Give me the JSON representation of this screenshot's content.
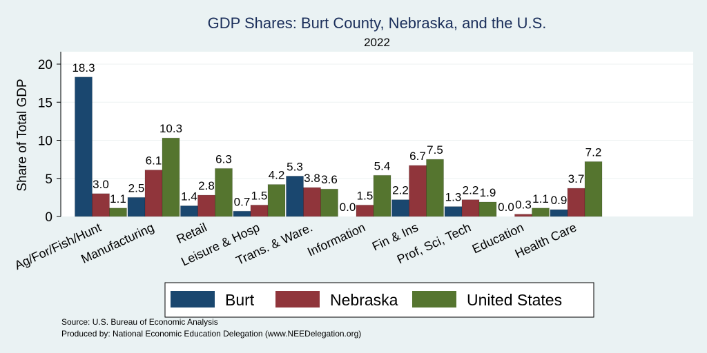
{
  "chart_data": {
    "type": "bar",
    "title": "GDP Shares: Burt County, Nebraska, and the U.S.",
    "subtitle": "2022",
    "ylabel": "Share of Total GDP",
    "xlabel": "",
    "ylim": [
      0,
      21.8
    ],
    "yticks": [
      0,
      5,
      10,
      15,
      20
    ],
    "grid": true,
    "legend_position": "bottom",
    "categories": [
      "Ag/For/Fish/Hunt",
      "Manufacturing",
      "Retail",
      "Leisure & Hosp",
      "Trans. & Ware.",
      "Information",
      "Fin & Ins",
      "Prof, Sci, Tech",
      "Education",
      "Health Care"
    ],
    "series": [
      {
        "name": "Burt",
        "color": "#1a476f",
        "values": [
          18.3,
          2.5,
          1.4,
          0.7,
          5.3,
          0.0,
          2.2,
          1.3,
          0.0,
          0.9
        ],
        "labels": [
          "18.3",
          "2.5",
          "1.4",
          "0.7",
          "5.3",
          "0.0",
          "2.2",
          "1.3",
          "0.0",
          "0.9"
        ]
      },
      {
        "name": "Nebraska",
        "color": "#90353b",
        "values": [
          3.0,
          6.1,
          2.8,
          1.5,
          3.8,
          1.5,
          6.7,
          2.2,
          0.3,
          3.7
        ],
        "labels": [
          "3.0",
          "6.1",
          "2.8",
          "1.5",
          "3.8",
          "1.5",
          "6.7",
          "2.2",
          "0.3",
          "3.7"
        ]
      },
      {
        "name": "United States",
        "color": "#55752f",
        "values": [
          1.1,
          10.3,
          6.3,
          4.2,
          3.6,
          5.4,
          7.5,
          1.9,
          1.1,
          7.2
        ],
        "labels": [
          "1.1",
          "10.3",
          "6.3",
          "4.2",
          "3.6",
          "5.4",
          "7.5",
          "1.9",
          "1.1",
          "7.2"
        ]
      }
    ]
  },
  "notes": {
    "source": "Source: U.S. Bureau of Economic Analysis",
    "produced": "Produced by: National Economic Education Delegation (www.NEEDelegation.org)"
  }
}
